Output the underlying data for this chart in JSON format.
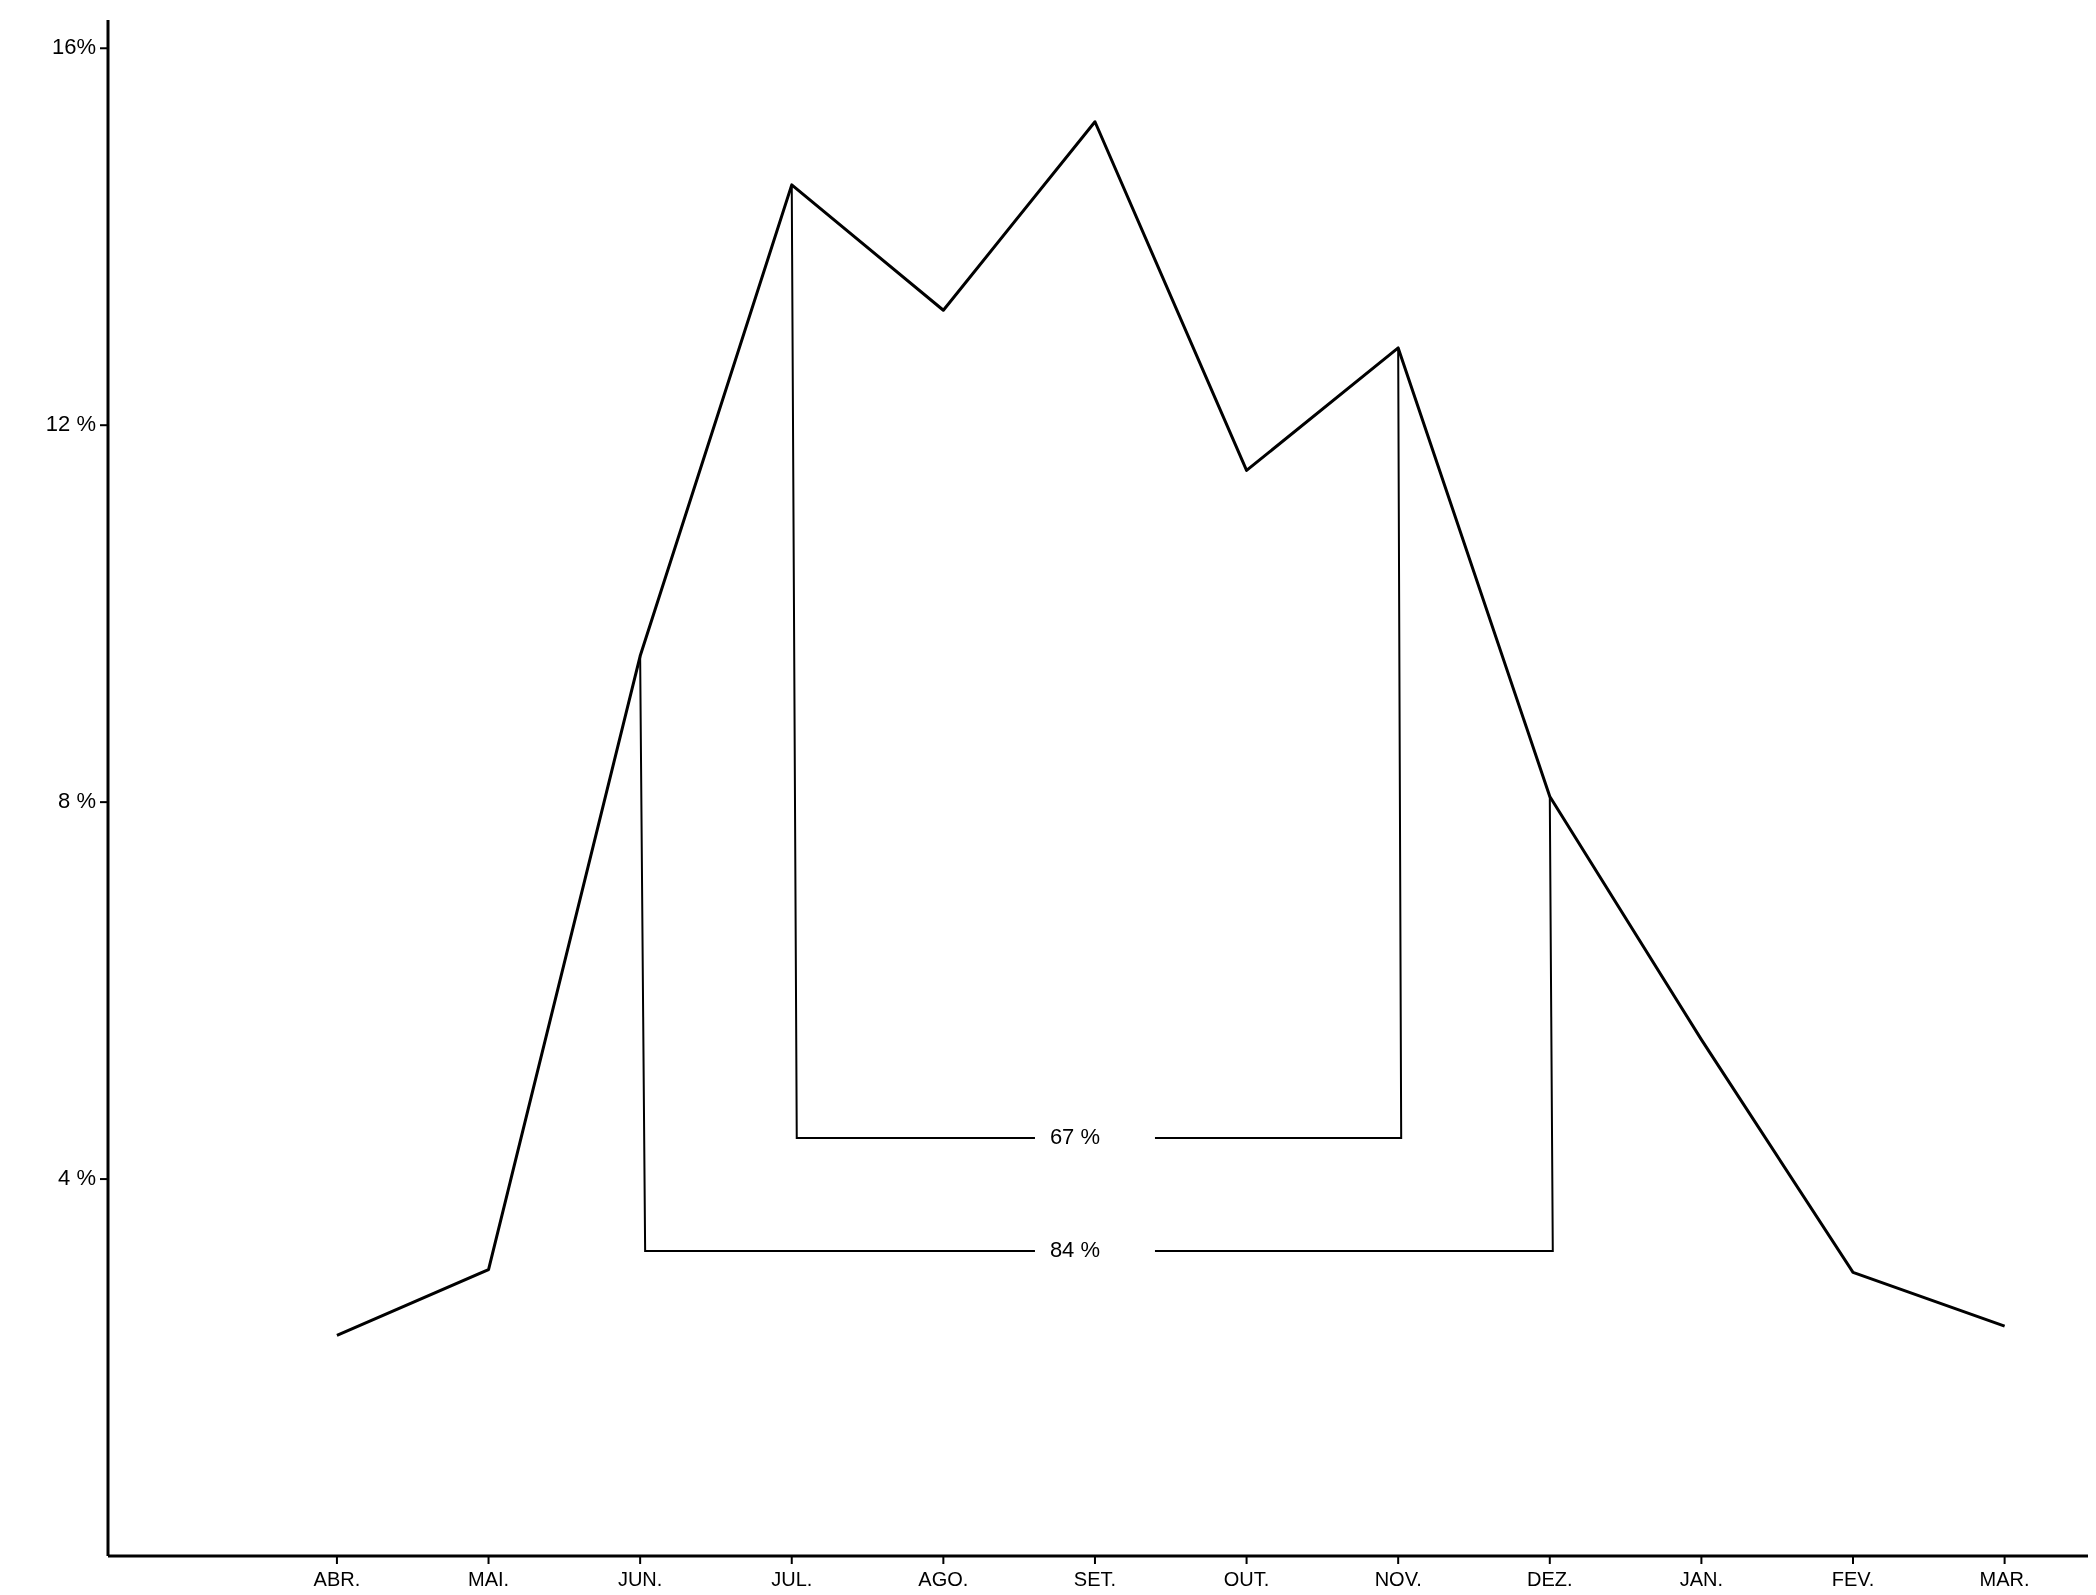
{
  "chart_data": {
    "type": "line",
    "categories": [
      "ABR.",
      "MAI.",
      "JUN.",
      "JUL.",
      "AGO.",
      "SET.",
      "OUT.",
      "NOV.",
      "DEZ.",
      "JAN.",
      "FEV.",
      "MAR."
    ],
    "series": [
      {
        "color": "#000000",
        "values": [
          2.34,
          3.04,
          9.55,
          14.55,
          13.22,
          15.22,
          11.52,
          12.82,
          8.06,
          5.48,
          3.01,
          2.44
        ]
      }
    ],
    "ylim": [
      0,
      16.3
    ],
    "yticks": [
      {
        "value": 4,
        "label": "4 %"
      },
      {
        "value": 8,
        "label": "8 %"
      },
      {
        "value": 12,
        "label": "12 %"
      },
      {
        "value": 16,
        "label": "16%"
      }
    ],
    "grid": false,
    "marker": "none",
    "line_style": "solid",
    "annotations": [
      {
        "text": "67 %",
        "x": "JUL.",
        "y": 14.55
      },
      {
        "text": "84 %",
        "x": "JUN.",
        "y": 9.55
      }
    ]
  }
}
